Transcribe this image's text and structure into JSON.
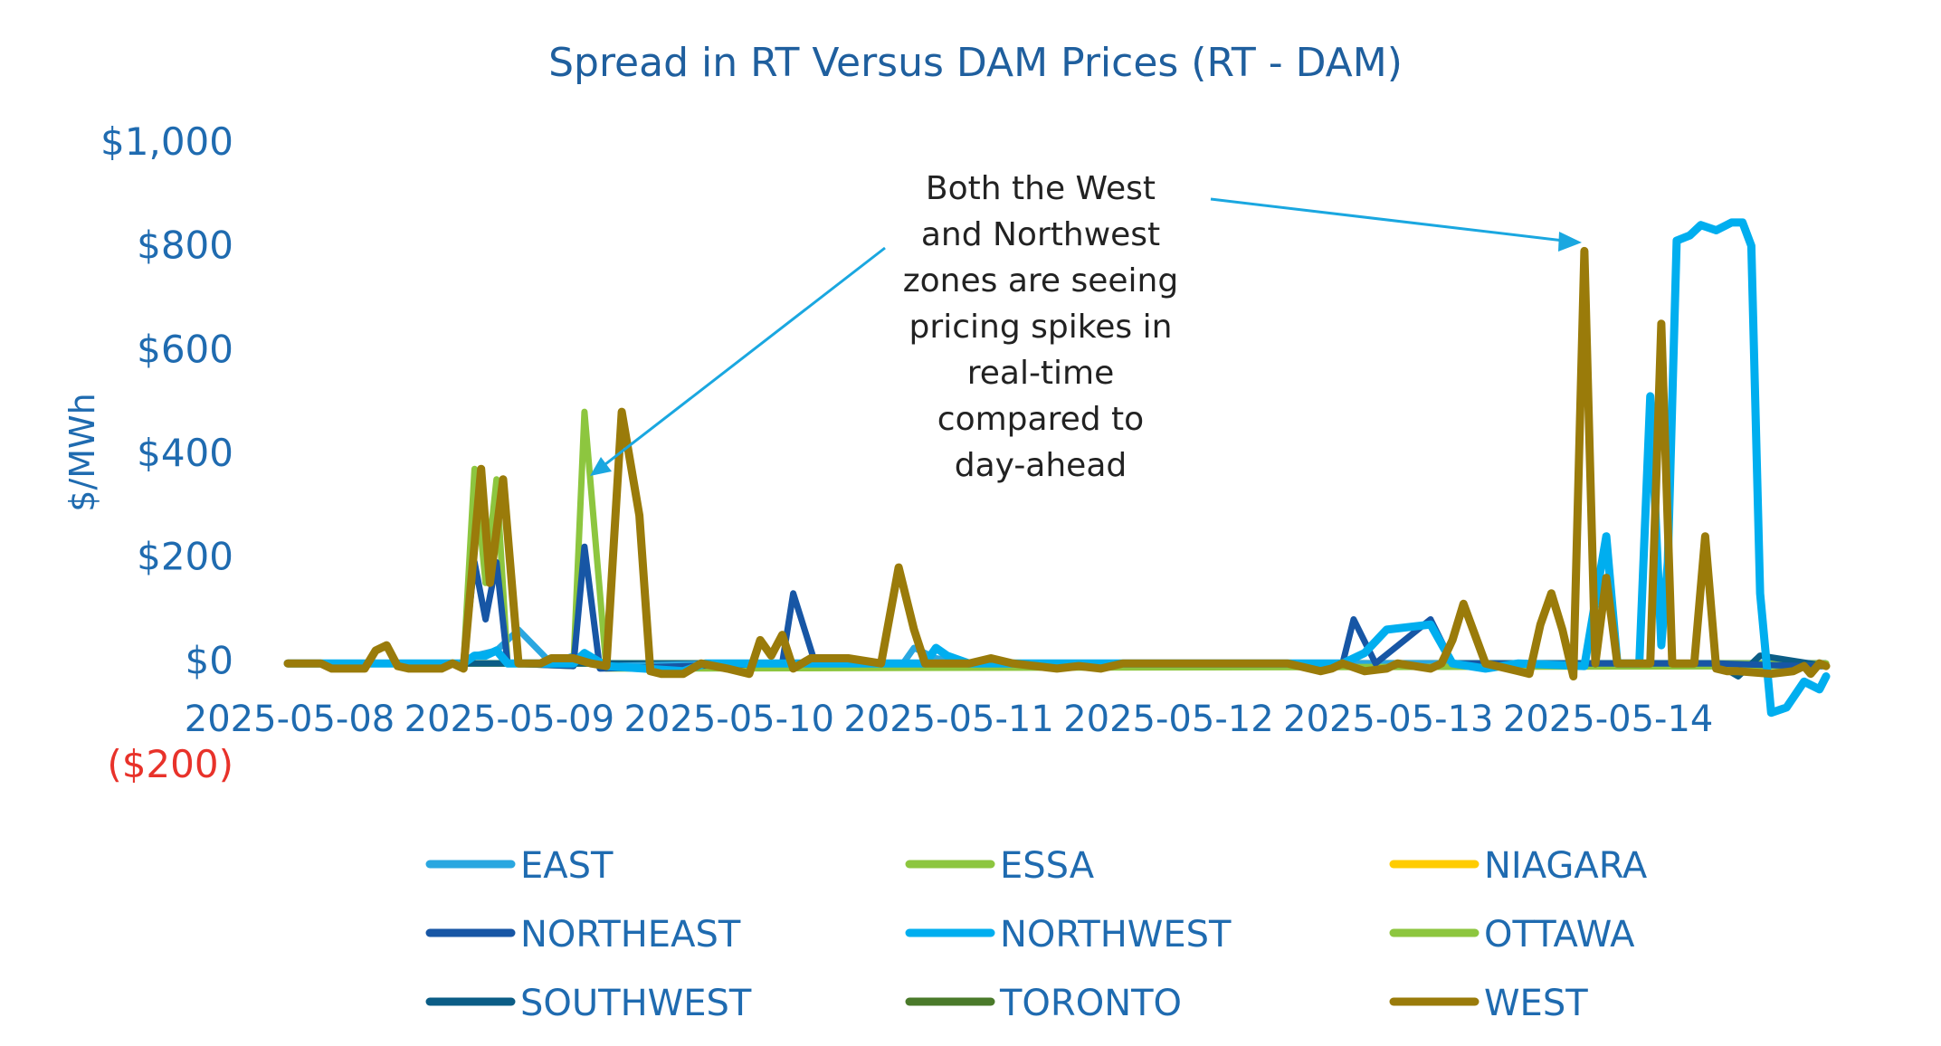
{
  "chart_data": {
    "type": "line",
    "title": "Spread in RT Versus DAM Prices (RT - DAM)",
    "ylabel": "$/MWh",
    "xlabel": "",
    "ylim": [
      -200,
      1000
    ],
    "yticks": [
      1000,
      800,
      600,
      400,
      200,
      0,
      -200
    ],
    "ytick_labels": [
      "$1,000",
      "$800",
      "$600",
      "$400",
      "$200",
      "$0",
      "($200)"
    ],
    "x_range": [
      0,
      7
    ],
    "x_ticks": [
      0,
      1,
      2,
      3,
      4,
      5,
      6
    ],
    "x_tick_labels": [
      "2025-05-08",
      "2025-05-09",
      "2025-05-10",
      "2025-05-11",
      "2025-05-12",
      "2025-05-13",
      "2025-05-14"
    ],
    "legend_position": "bottom",
    "annotation": {
      "lines": [
        "Both the West",
        "and Northwest",
        "zones are seeing",
        "pricing spikes in",
        "real-time",
        "compared to",
        "day-ahead"
      ]
    },
    "series": [
      {
        "name": "EAST",
        "color": "#2aa7e0",
        "points": [
          [
            0,
            -5
          ],
          [
            0.8,
            -5
          ],
          [
            0.85,
            10
          ],
          [
            0.95,
            20
          ],
          [
            1.05,
            60
          ],
          [
            1.2,
            -5
          ],
          [
            1.3,
            10
          ],
          [
            1.45,
            -10
          ],
          [
            2.0,
            -5
          ],
          [
            2.8,
            -5
          ],
          [
            2.85,
            25
          ],
          [
            2.95,
            5
          ],
          [
            3.1,
            -5
          ],
          [
            4.8,
            -5
          ],
          [
            5.0,
            -5
          ],
          [
            5.3,
            -5
          ],
          [
            5.6,
            -10
          ],
          [
            6.2,
            -10
          ],
          [
            6.5,
            -10
          ],
          [
            7,
            -10
          ]
        ]
      },
      {
        "name": "ESSA",
        "color": "#8dc63f",
        "points": [
          [
            0,
            -5
          ],
          [
            0.8,
            -5
          ],
          [
            0.85,
            370
          ],
          [
            0.9,
            150
          ],
          [
            0.95,
            350
          ],
          [
            1.0,
            -5
          ],
          [
            1.3,
            -10
          ],
          [
            1.35,
            480
          ],
          [
            1.45,
            -15
          ],
          [
            7,
            -10
          ]
        ]
      },
      {
        "name": "NIAGARA",
        "color": "#ffcc00",
        "points": [
          [
            0,
            -5
          ],
          [
            1.0,
            -5
          ],
          [
            3.0,
            -5
          ],
          [
            5.0,
            -5
          ],
          [
            7,
            -5
          ]
        ]
      },
      {
        "name": "NORTHEAST",
        "color": "#1756a5",
        "points": [
          [
            0,
            -5
          ],
          [
            0.8,
            -5
          ],
          [
            0.85,
            190
          ],
          [
            0.9,
            80
          ],
          [
            0.95,
            190
          ],
          [
            1.0,
            -5
          ],
          [
            1.3,
            -10
          ],
          [
            1.35,
            220
          ],
          [
            1.42,
            -15
          ],
          [
            2.25,
            -5
          ],
          [
            2.3,
            130
          ],
          [
            2.4,
            -5
          ],
          [
            4.8,
            -5
          ],
          [
            4.85,
            80
          ],
          [
            4.95,
            -5
          ],
          [
            5.2,
            80
          ],
          [
            5.3,
            -5
          ],
          [
            5.8,
            -5
          ],
          [
            6.2,
            -5
          ],
          [
            6.5,
            -5
          ],
          [
            6.9,
            -10
          ],
          [
            7,
            -10
          ]
        ]
      },
      {
        "name": "NORTHWEST",
        "color": "#00aeef",
        "points": [
          [
            0,
            -5
          ],
          [
            0.6,
            -5
          ],
          [
            0.8,
            -5
          ],
          [
            0.85,
            10
          ],
          [
            0.9,
            10
          ],
          [
            0.95,
            20
          ],
          [
            1.0,
            -5
          ],
          [
            1.3,
            -5
          ],
          [
            1.35,
            15
          ],
          [
            1.45,
            -10
          ],
          [
            1.8,
            -20
          ],
          [
            1.9,
            -5
          ],
          [
            2.5,
            -5
          ],
          [
            2.9,
            -5
          ],
          [
            2.95,
            25
          ],
          [
            3.0,
            10
          ],
          [
            3.1,
            -5
          ],
          [
            4.0,
            -5
          ],
          [
            4.8,
            -5
          ],
          [
            4.9,
            15
          ],
          [
            5.0,
            60
          ],
          [
            5.2,
            70
          ],
          [
            5.3,
            -5
          ],
          [
            5.45,
            -15
          ],
          [
            5.6,
            -5
          ],
          [
            5.9,
            -10
          ],
          [
            6.0,
            240
          ],
          [
            6.05,
            -5
          ],
          [
            6.15,
            -5
          ],
          [
            6.2,
            510
          ],
          [
            6.25,
            30
          ],
          [
            6.28,
            190
          ],
          [
            6.32,
            810
          ],
          [
            6.38,
            820
          ],
          [
            6.43,
            840
          ],
          [
            6.5,
            830
          ],
          [
            6.57,
            845
          ],
          [
            6.62,
            845
          ],
          [
            6.66,
            800
          ],
          [
            6.7,
            130
          ],
          [
            6.75,
            -100
          ],
          [
            6.82,
            -90
          ],
          [
            6.9,
            -40
          ],
          [
            6.97,
            -55
          ],
          [
            7.0,
            -30
          ]
        ]
      },
      {
        "name": "OTTAWA",
        "color": "#8dc63f",
        "points": [
          [
            0,
            -5
          ],
          [
            2.0,
            -5
          ],
          [
            4.0,
            -5
          ],
          [
            7,
            -5
          ]
        ]
      },
      {
        "name": "SOUTHWEST",
        "color": "#0b5d86",
        "points": [
          [
            0,
            -5
          ],
          [
            1.0,
            -5
          ],
          [
            2.0,
            -5
          ],
          [
            5.0,
            -5
          ],
          [
            6.5,
            -5
          ],
          [
            6.6,
            -30
          ],
          [
            6.7,
            10
          ],
          [
            7,
            -10
          ]
        ]
      },
      {
        "name": "TORONTO",
        "color": "#4a7a2a",
        "points": [
          [
            0,
            -5
          ],
          [
            2.0,
            -5
          ],
          [
            4.0,
            -5
          ],
          [
            7,
            -5
          ]
        ]
      },
      {
        "name": "WEST",
        "color": "#9a7b0a",
        "points": [
          [
            0,
            -5
          ],
          [
            0.15,
            -5
          ],
          [
            0.2,
            -15
          ],
          [
            0.35,
            -15
          ],
          [
            0.4,
            20
          ],
          [
            0.45,
            30
          ],
          [
            0.5,
            -10
          ],
          [
            0.55,
            -15
          ],
          [
            0.7,
            -15
          ],
          [
            0.75,
            -5
          ],
          [
            0.8,
            -15
          ],
          [
            0.88,
            370
          ],
          [
            0.92,
            150
          ],
          [
            0.98,
            350
          ],
          [
            1.05,
            -5
          ],
          [
            1.15,
            -5
          ],
          [
            1.2,
            5
          ],
          [
            1.3,
            5
          ],
          [
            1.38,
            -5
          ],
          [
            1.45,
            -10
          ],
          [
            1.52,
            480
          ],
          [
            1.6,
            280
          ],
          [
            1.65,
            -20
          ],
          [
            1.7,
            -25
          ],
          [
            1.8,
            -25
          ],
          [
            1.88,
            -5
          ],
          [
            2.0,
            -15
          ],
          [
            2.1,
            -25
          ],
          [
            2.15,
            40
          ],
          [
            2.2,
            10
          ],
          [
            2.25,
            50
          ],
          [
            2.3,
            -15
          ],
          [
            2.38,
            5
          ],
          [
            2.5,
            5
          ],
          [
            2.55,
            5
          ],
          [
            2.7,
            -5
          ],
          [
            2.78,
            180
          ],
          [
            2.85,
            60
          ],
          [
            2.9,
            -5
          ],
          [
            3.1,
            -5
          ],
          [
            3.2,
            5
          ],
          [
            3.3,
            -5
          ],
          [
            3.5,
            -15
          ],
          [
            3.6,
            -10
          ],
          [
            3.7,
            -15
          ],
          [
            3.8,
            -5
          ],
          [
            4.0,
            -5
          ],
          [
            4.1,
            -5
          ],
          [
            4.4,
            -5
          ],
          [
            4.55,
            -5
          ],
          [
            4.7,
            -20
          ],
          [
            4.75,
            -15
          ],
          [
            4.8,
            -5
          ],
          [
            4.9,
            -20
          ],
          [
            5.0,
            -15
          ],
          [
            5.05,
            -5
          ],
          [
            5.2,
            -15
          ],
          [
            5.25,
            -5
          ],
          [
            5.3,
            40
          ],
          [
            5.35,
            110
          ],
          [
            5.45,
            -5
          ],
          [
            5.6,
            -20
          ],
          [
            5.65,
            -25
          ],
          [
            5.7,
            70
          ],
          [
            5.75,
            130
          ],
          [
            5.8,
            60
          ],
          [
            5.85,
            -30
          ],
          [
            5.9,
            790
          ],
          [
            5.95,
            -5
          ],
          [
            6.0,
            160
          ],
          [
            6.05,
            -5
          ],
          [
            6.1,
            -5
          ],
          [
            6.2,
            -5
          ],
          [
            6.25,
            650
          ],
          [
            6.3,
            -5
          ],
          [
            6.4,
            -5
          ],
          [
            6.45,
            240
          ],
          [
            6.5,
            -15
          ],
          [
            6.55,
            -20
          ],
          [
            6.6,
            -20
          ],
          [
            6.75,
            -25
          ],
          [
            6.85,
            -20
          ],
          [
            6.9,
            -10
          ],
          [
            6.93,
            -25
          ],
          [
            6.97,
            -5
          ],
          [
            7.0,
            -10
          ]
        ]
      }
    ]
  }
}
